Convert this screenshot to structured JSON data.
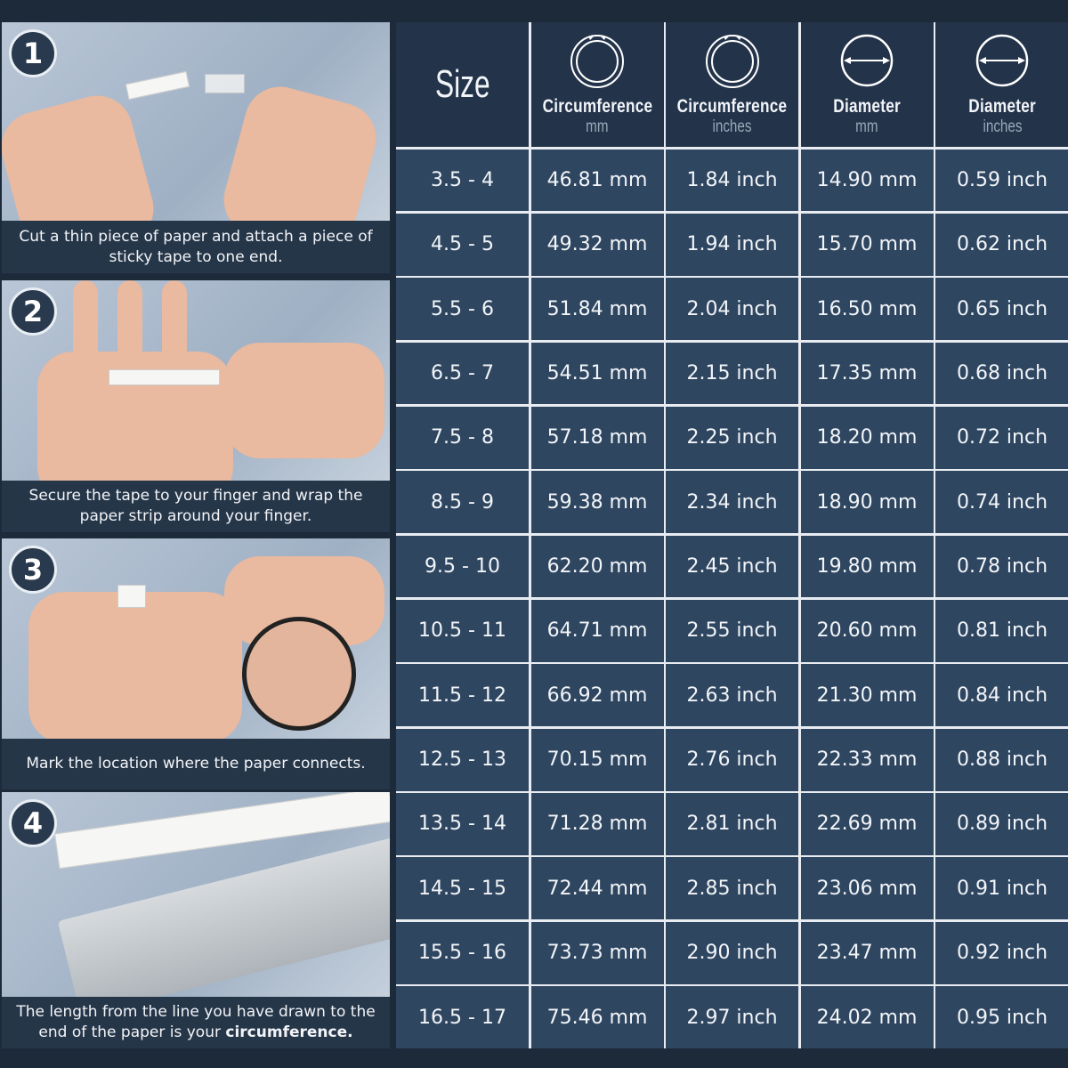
{
  "steps": [
    {
      "number": "1",
      "caption": "Cut a thin piece of paper and attach a piece of sticky tape to one end.",
      "caption_bold": ""
    },
    {
      "number": "2",
      "caption": "Secure the tape to your finger and wrap the paper strip around your finger.",
      "caption_bold": ""
    },
    {
      "number": "3",
      "caption": "Mark the location where the paper connects.",
      "caption_bold": ""
    },
    {
      "number": "4",
      "caption": "The length from the line you have drawn to the end of the paper is your ",
      "caption_bold": "circumference."
    }
  ],
  "table": {
    "headers": [
      {
        "title": "Size",
        "unit": "",
        "icon": "none"
      },
      {
        "title": "Circumference",
        "unit": "mm",
        "icon": "circumference-icon"
      },
      {
        "title": "Circumference",
        "unit": "inches",
        "icon": "circumference-icon"
      },
      {
        "title": "Diameter",
        "unit": "mm",
        "icon": "diameter-icon"
      },
      {
        "title": "Diameter",
        "unit": "inches",
        "icon": "diameter-icon"
      }
    ],
    "rows": [
      [
        "3.5 - 4",
        "46.81 mm",
        "1.84 inch",
        "14.90 mm",
        "0.59 inch"
      ],
      [
        "4.5 - 5",
        "49.32 mm",
        "1.94 inch",
        "15.70 mm",
        "0.62 inch"
      ],
      [
        "5.5 - 6",
        "51.84 mm",
        "2.04 inch",
        "16.50 mm",
        "0.65 inch"
      ],
      [
        "6.5 - 7",
        "54.51 mm",
        "2.15 inch",
        "17.35 mm",
        "0.68 inch"
      ],
      [
        "7.5 - 8",
        "57.18 mm",
        "2.25 inch",
        "18.20 mm",
        "0.72 inch"
      ],
      [
        "8.5 - 9",
        "59.38 mm",
        "2.34 inch",
        "18.90 mm",
        "0.74 inch"
      ],
      [
        "9.5 - 10",
        "62.20 mm",
        "2.45 inch",
        "19.80 mm",
        "0.78 inch"
      ],
      [
        "10.5 - 11",
        "64.71 mm",
        "2.55 inch",
        "20.60 mm",
        "0.81 inch"
      ],
      [
        "11.5 - 12",
        "66.92 mm",
        "2.63 inch",
        "21.30 mm",
        "0.84 inch"
      ],
      [
        "12.5 - 13",
        "70.15 mm",
        "2.76 inch",
        "22.33 mm",
        "0.88 inch"
      ],
      [
        "13.5 - 14",
        "71.28 mm",
        "2.81 inch",
        "22.69 mm",
        "0.89 inch"
      ],
      [
        "14.5 - 15",
        "72.44 mm",
        "2.85 inch",
        "23.06 mm",
        "0.91 inch"
      ],
      [
        "15.5 - 16",
        "73.73 mm",
        "2.90 inch",
        "23.47 mm",
        "0.92 inch"
      ],
      [
        "16.5 - 17",
        "75.46 mm",
        "2.97 inch",
        "24.02 mm",
        "0.95 inch"
      ]
    ]
  },
  "colors": {
    "background": "#1d2a3a",
    "header_cell": "#23334a",
    "data_cell": "#2f4661",
    "grid_line": "#e9edf2"
  }
}
